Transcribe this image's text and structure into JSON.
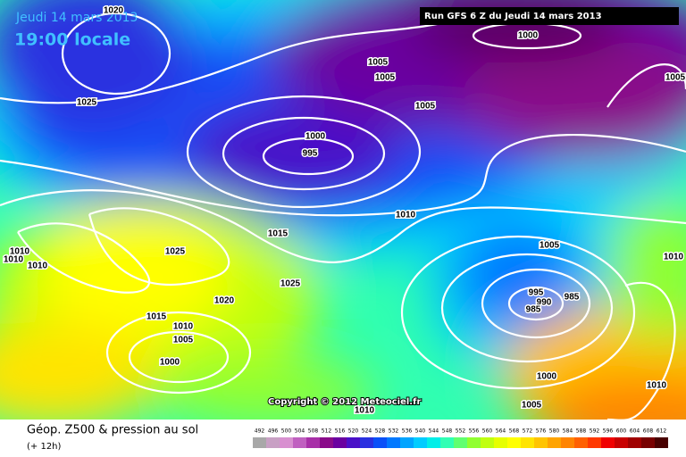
{
  "header": {
    "date": "Jeudi 14 mars 2013",
    "time": "19:00 locale",
    "run": "Run GFS 6 Z du Jeudi 14 mars 2013"
  },
  "isobar_labels": [
    "1020",
    "1025",
    "1000",
    "995",
    "1005",
    "1005",
    "1005",
    "1000",
    "1005",
    "1010",
    "1015",
    "1025",
    "1025",
    "1020",
    "1015",
    "1010",
    "1005",
    "1000",
    "1010",
    "1010",
    "1010",
    "1005",
    "995",
    "990",
    "985",
    "985",
    "1000",
    "1005",
    "1010",
    "1010",
    "1010"
  ],
  "copyright": "Copyright © 2012 Meteociel.fr",
  "footer": {
    "title": "Géop. Z500 & pression au sol",
    "subtitle": "(+ 12h)"
  },
  "legend": {
    "values": [
      492,
      496,
      500,
      504,
      508,
      512,
      516,
      520,
      524,
      528,
      532,
      536,
      540,
      544,
      548,
      552,
      556,
      560,
      564,
      568,
      572,
      576,
      580,
      584,
      588,
      592,
      596,
      600,
      604,
      608,
      612
    ],
    "colors": [
      "#a8a8a8",
      "#c8a0c4",
      "#d890d0",
      "#c060c0",
      "#a830a8",
      "#8a0a8a",
      "#6a00a0",
      "#4a10c8",
      "#2a30e0",
      "#0a50f8",
      "#0078ff",
      "#00a4ff",
      "#00ccff",
      "#00eee8",
      "#30ffb4",
      "#60ff70",
      "#90ff30",
      "#c0ff10",
      "#e6ff00",
      "#ffff00",
      "#ffe400",
      "#ffc400",
      "#ffa400",
      "#ff8400",
      "#ff6000",
      "#ff3800",
      "#f00000",
      "#c80000",
      "#a00000",
      "#780000",
      "#480000"
    ]
  }
}
